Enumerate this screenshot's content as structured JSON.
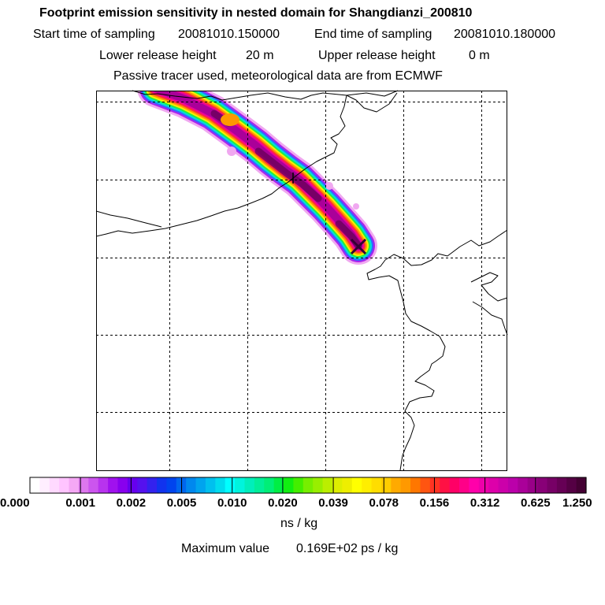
{
  "header": {
    "title": "Footprint emission sensitivity in nested domain for Shangdianzi_200810",
    "start_label": "Start time of sampling",
    "start_value": "20081010.150000",
    "end_label": "End time of sampling",
    "end_value": "20081010.180000",
    "lower_label": "Lower release height",
    "lower_value": "20 m",
    "upper_label": "Upper release height",
    "upper_value": "0 m",
    "tracer_note": "Passive tracer used, meteorological data are from ECMWF"
  },
  "colorbar": {
    "labels": [
      "0.000",
      "0.001",
      "0.002",
      "0.005",
      "0.010",
      "0.020",
      "0.039",
      "0.078",
      "0.156",
      "0.312",
      "0.625",
      "1.250"
    ],
    "colors": [
      "#ffffff",
      "#ffeeff",
      "#ffd9ff",
      "#ffc4ff",
      "#f5a8f5",
      "#dd77ee",
      "#cc55ee",
      "#b833ee",
      "#a011ee",
      "#8800ee",
      "#6600ee",
      "#5511ee",
      "#3322ee",
      "#1133ee",
      "#0044ee",
      "#0066ee",
      "#0088ee",
      "#00a4ee",
      "#00c0ee",
      "#00dcee",
      "#00ffff",
      "#00f4dd",
      "#00eebb",
      "#00ee99",
      "#00ee77",
      "#00ee44",
      "#11ee11",
      "#44ee00",
      "#77ee00",
      "#99ee00",
      "#bbee00",
      "#ddee00",
      "#eeee00",
      "#ffff00",
      "#ffee00",
      "#ffdd00",
      "#ffcc00",
      "#ffaa00",
      "#ff9900",
      "#ff7700",
      "#ff5511",
      "#ff3322",
      "#ff1144",
      "#ff0066",
      "#ff0088",
      "#ff00aa",
      "#ee00aa",
      "#dd00aa",
      "#cc00aa",
      "#bb00aa",
      "#aa0099",
      "#990088",
      "#880077",
      "#770066",
      "#660055",
      "#550044",
      "#440033"
    ],
    "unit": "ns / kg",
    "max_label": "Maximum value",
    "max_value": "0.169E+02 ps / kg"
  },
  "plume": {
    "colors": {
      "outer": "#f0a8f0",
      "violet": "#aa22ee",
      "blue": "#3366ff",
      "cyan": "#00dddd",
      "green": "#22ee44",
      "yellow": "#ffee00",
      "orange": "#ff9900",
      "red": "#ff3333",
      "magenta": "#ee0099",
      "purple": "#aa0099",
      "dark": "#660055"
    }
  },
  "receptor": {
    "name": "Shangdianzi",
    "marker_color": "#330033"
  }
}
